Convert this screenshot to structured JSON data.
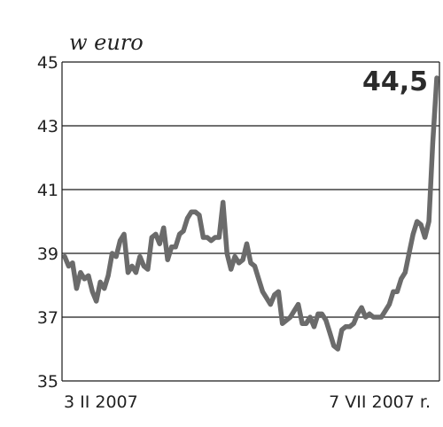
{
  "chart_data": {
    "type": "line",
    "unit_label": "w euro",
    "y_ticks": [
      "45",
      "43",
      "41",
      "39",
      "37",
      "35"
    ],
    "ylim": [
      35,
      45
    ],
    "x_ticks": [
      "3 II 2007",
      "7 VII 2007 r."
    ],
    "grid": "horizontal",
    "callout": "44,5",
    "colors": {
      "line": "#6b6b6b",
      "grid": "#1a1a1a",
      "text": "#222222"
    },
    "series": [
      {
        "values": [
          38.9,
          38.6,
          38.7,
          37.9,
          38.4,
          38.2,
          38.3,
          37.8,
          37.5,
          38.1,
          37.9,
          38.3,
          39.0,
          38.9,
          39.4,
          39.6,
          38.4,
          38.6,
          38.4,
          38.9,
          38.6,
          38.5,
          39.5,
          39.6,
          39.3,
          39.8,
          38.8,
          39.2,
          39.2,
          39.6,
          39.7,
          40.1,
          40.3,
          40.3,
          40.2,
          39.5,
          39.5,
          39.4,
          39.5,
          39.5,
          40.6,
          39.0,
          38.5,
          38.9,
          38.7,
          38.8,
          39.3,
          38.7,
          38.6,
          38.2,
          37.8,
          37.6,
          37.4,
          37.7,
          37.8,
          36.8,
          36.9,
          37.0,
          37.2,
          37.4,
          36.8,
          36.8,
          37.0,
          36.7,
          37.1,
          37.1,
          36.9,
          36.5,
          36.1,
          36.0,
          36.6,
          36.7,
          36.7,
          36.8,
          37.1,
          37.3,
          37.0,
          37.1,
          37.0,
          37.0,
          37.0,
          37.2,
          37.4,
          37.8,
          37.8,
          38.2,
          38.4,
          39.0,
          39.6,
          40.0,
          39.9,
          39.5,
          40.0,
          42.5,
          44.5
        ]
      }
    ]
  }
}
